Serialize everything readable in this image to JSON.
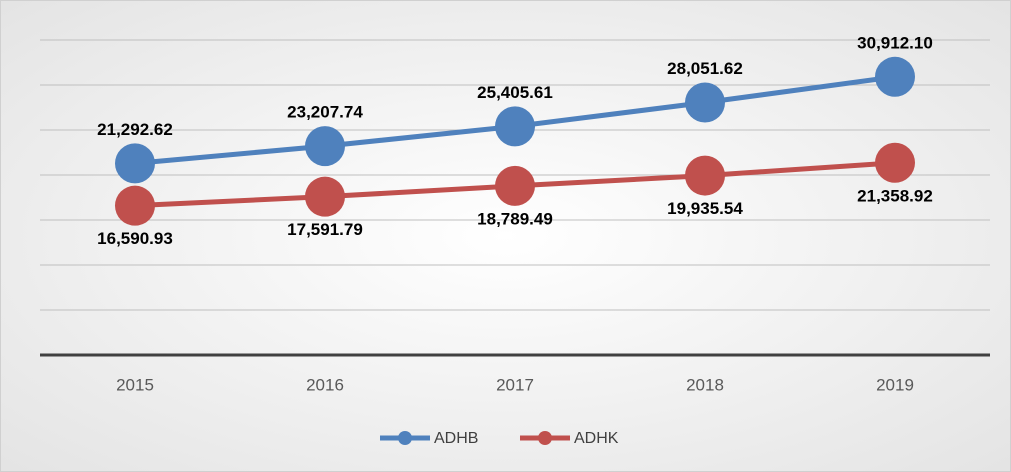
{
  "chart_data": {
    "type": "line",
    "categories": [
      "2015",
      "2016",
      "2017",
      "2018",
      "2019"
    ],
    "series": [
      {
        "name": "ADHB",
        "color": "#4f81bd",
        "values": [
          21292.62,
          23207.74,
          25405.61,
          28051.62,
          30912.1
        ],
        "value_labels": [
          "21,292.62",
          "23,207.74",
          "25,405.61",
          "28,051.62",
          "30,912.10"
        ]
      },
      {
        "name": "ADHK",
        "color": "#c0504d",
        "values": [
          16590.93,
          17591.79,
          18789.49,
          19935.54,
          21358.92
        ],
        "value_labels": [
          "16,590.93",
          "17,591.79",
          "18,789.49",
          "19,935.54",
          "21,358.92"
        ]
      }
    ],
    "ylim": [
      0,
      35000
    ],
    "yticks": [
      0,
      5000,
      10000,
      15000,
      20000,
      25000,
      30000,
      35000
    ],
    "grid": true,
    "legend": "bottom"
  }
}
